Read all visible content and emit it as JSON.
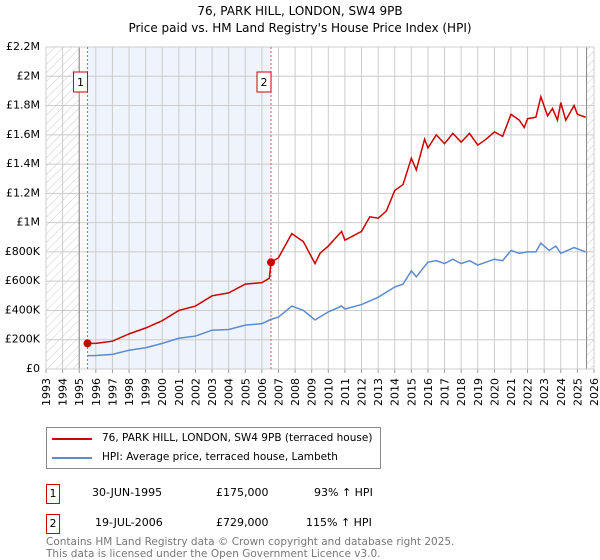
{
  "title_line1": "76, PARK HILL, LONDON, SW4 9PB",
  "title_line2": "Price paid vs. HM Land Registry's House Price Index (HPI)",
  "chart_data": {
    "type": "line",
    "title": "76, PARK HILL, LONDON, SW4 9PB - Price paid vs. HM Land Registry's House Price Index (HPI)",
    "xlim": [
      1993,
      2026
    ],
    "ylim": [
      0,
      2200000
    ],
    "x_ticks": [
      "1993",
      "1994",
      "1995",
      "1996",
      "1997",
      "1998",
      "1999",
      "2000",
      "2001",
      "2002",
      "2003",
      "2004",
      "2005",
      "2006",
      "2007",
      "2008",
      "2009",
      "2010",
      "2011",
      "2012",
      "2013",
      "2014",
      "2015",
      "2016",
      "2017",
      "2018",
      "2019",
      "2020",
      "2021",
      "2022",
      "2023",
      "2024",
      "2025",
      "2026"
    ],
    "y_ticks": [
      {
        "v": 0,
        "label": "£0"
      },
      {
        "v": 200000,
        "label": "£200K"
      },
      {
        "v": 400000,
        "label": "£400K"
      },
      {
        "v": 600000,
        "label": "£600K"
      },
      {
        "v": 800000,
        "label": "£800K"
      },
      {
        "v": 1000000,
        "label": "£1M"
      },
      {
        "v": 1200000,
        "label": "£1.2M"
      },
      {
        "v": 1400000,
        "label": "£1.4M"
      },
      {
        "v": 1600000,
        "label": "£1.6M"
      },
      {
        "v": 1800000,
        "label": "£1.8M"
      },
      {
        "v": 2000000,
        "label": "£2M"
      },
      {
        "v": 2200000,
        "label": "£2.2M"
      }
    ],
    "grid": true,
    "hatched_ranges": [
      [
        1993,
        1995.0
      ],
      [
        2025.55,
        2026
      ]
    ],
    "shaded_range": [
      1995.5,
      2006.55
    ],
    "series": [
      {
        "name": "76, PARK HILL, LONDON, SW4 9PB (terraced house)",
        "color": "#cc0000",
        "x": [
          1995.5,
          1996,
          1997,
          1998,
          1999,
          2000,
          2001,
          2002,
          2003,
          2004,
          2005,
          2006,
          2006.45,
          2006.55,
          2007,
          2007.8,
          2008.5,
          2009.2,
          2009.5,
          2010,
          2010.8,
          2011,
          2012,
          2012.5,
          2013,
          2013.5,
          2014,
          2014.5,
          2015,
          2015.3,
          2015.8,
          2016,
          2016.5,
          2017,
          2017.5,
          2018,
          2018.5,
          2019,
          2019.5,
          2020,
          2020.5,
          2021,
          2021.5,
          2021.8,
          2022,
          2022.5,
          2022.8,
          2023.2,
          2023.5,
          2023.8,
          2024,
          2024.3,
          2024.8,
          2025,
          2025.5
        ],
        "values": [
          175000,
          175000,
          190000,
          240000,
          280000,
          330000,
          400000,
          430000,
          500000,
          520000,
          580000,
          590000,
          620000,
          729000,
          760000,
          925000,
          870000,
          720000,
          790000,
          840000,
          940000,
          880000,
          940000,
          1040000,
          1030000,
          1080000,
          1220000,
          1260000,
          1440000,
          1360000,
          1570000,
          1510000,
          1600000,
          1540000,
          1610000,
          1550000,
          1610000,
          1530000,
          1570000,
          1620000,
          1590000,
          1740000,
          1700000,
          1650000,
          1710000,
          1720000,
          1860000,
          1730000,
          1780000,
          1700000,
          1820000,
          1700000,
          1800000,
          1740000,
          1720000
        ]
      },
      {
        "name": "HPI: Average price, terraced house, Lambeth",
        "color": "#5b8bd0",
        "x": [
          1995.5,
          1996,
          1997,
          1998,
          1999,
          2000,
          2001,
          2002,
          2003,
          2004,
          2005,
          2006,
          2006.55,
          2007,
          2007.8,
          2008.5,
          2009.2,
          2010,
          2010.8,
          2011,
          2012,
          2013,
          2014,
          2014.5,
          2015,
          2015.3,
          2016,
          2016.5,
          2017,
          2017.5,
          2018,
          2018.5,
          2019,
          2020,
          2020.5,
          2021,
          2021.5,
          2022,
          2022.5,
          2022.8,
          2023.3,
          2023.7,
          2024,
          2024.8,
          2025.5
        ],
        "values": [
          91000,
          92000,
          100000,
          128000,
          145000,
          175000,
          210000,
          225000,
          265000,
          270000,
          300000,
          310000,
          339000,
          355000,
          430000,
          400000,
          335000,
          390000,
          430000,
          410000,
          440000,
          490000,
          560000,
          580000,
          670000,
          630000,
          730000,
          740000,
          720000,
          750000,
          720000,
          740000,
          710000,
          750000,
          740000,
          810000,
          790000,
          800000,
          800000,
          860000,
          810000,
          840000,
          790000,
          830000,
          800000
        ]
      }
    ],
    "annotations": [
      {
        "label": "1",
        "x": 1995.5,
        "y": 175000
      },
      {
        "label": "2",
        "x": 2006.55,
        "y": 729000
      }
    ],
    "legend_placement": "below"
  },
  "legend": [
    {
      "label": "76, PARK HILL, LONDON, SW4 9PB (terraced house)",
      "color": "#cc0000"
    },
    {
      "label": "HPI: Average price, terraced house, Lambeth",
      "color": "#5b8bd0"
    }
  ],
  "transactions": [
    {
      "num": "1",
      "date": "30-JUN-1995",
      "price": "£175,000",
      "hpi": "93% ↑ HPI"
    },
    {
      "num": "2",
      "date": "19-JUL-2006",
      "price": "£729,000",
      "hpi": "115% ↑ HPI"
    }
  ],
  "footer_line1": "Contains HM Land Registry data © Crown copyright and database right 2025.",
  "footer_line2": "This data is licensed under the Open Government Licence v3.0."
}
